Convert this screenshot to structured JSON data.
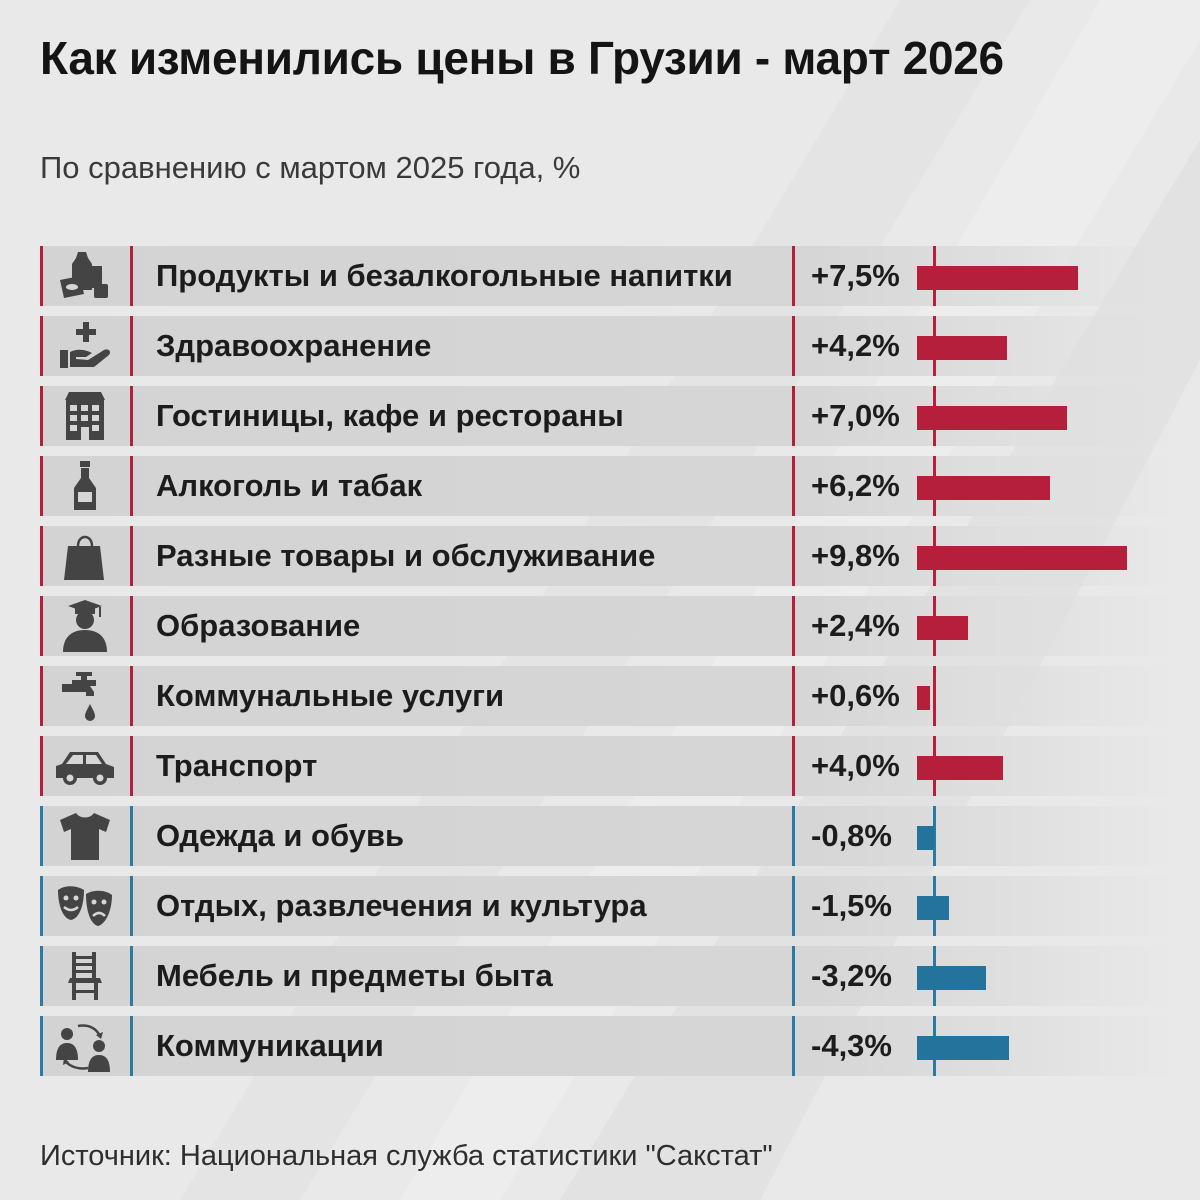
{
  "title": "Как изменились цены в Грузии - март 2026",
  "subtitle": "По сравнению с мартом 2025 года, %",
  "source": "Источник: Национальная служба статистики \"Сакстат\"",
  "colors": {
    "increase": "#b51f3c",
    "decrease": "#23739c",
    "background": "#e9e9e9"
  },
  "chart_data": {
    "type": "bar",
    "orientation": "horizontal",
    "title": "Как изменились цены в Грузии - март 2026",
    "subtitle": "По сравнению с мартом 2025 года, %",
    "unit": "%",
    "categories": [
      "Продукты и безалкогольные напитки",
      "Здравоохранение",
      "Гостиницы, кафе и рестораны",
      "Алкоголь и табак",
      "Разные товары и обслуживание",
      "Образование",
      "Коммунальные услуги",
      "Транспорт",
      "Одежда и обувь",
      "Отдых, развлечения и культура",
      "Мебель и предметы быта",
      "Коммуникации"
    ],
    "values": [
      7.5,
      4.2,
      7.0,
      6.2,
      9.8,
      2.4,
      0.6,
      4.0,
      -0.8,
      -1.5,
      -3.2,
      -4.3
    ],
    "value_labels": [
      "+7,5%",
      "+4,2%",
      "+7,0%",
      "+6,2%",
      "+9,8%",
      "+2,4%",
      "+0,6%",
      "+4,0%",
      "-0,8%",
      "-1,5%",
      "-3,2%",
      "-4,3%"
    ],
    "icons": [
      "grocery-icon",
      "healthcare-hand-icon",
      "hotel-building-icon",
      "bottle-icon",
      "shopping-bag-icon",
      "graduate-icon",
      "water-tap-icon",
      "car-icon",
      "tshirt-icon",
      "theater-masks-icon",
      "chair-icon",
      "communication-people-icon"
    ],
    "xlim": [
      0,
      10
    ]
  }
}
